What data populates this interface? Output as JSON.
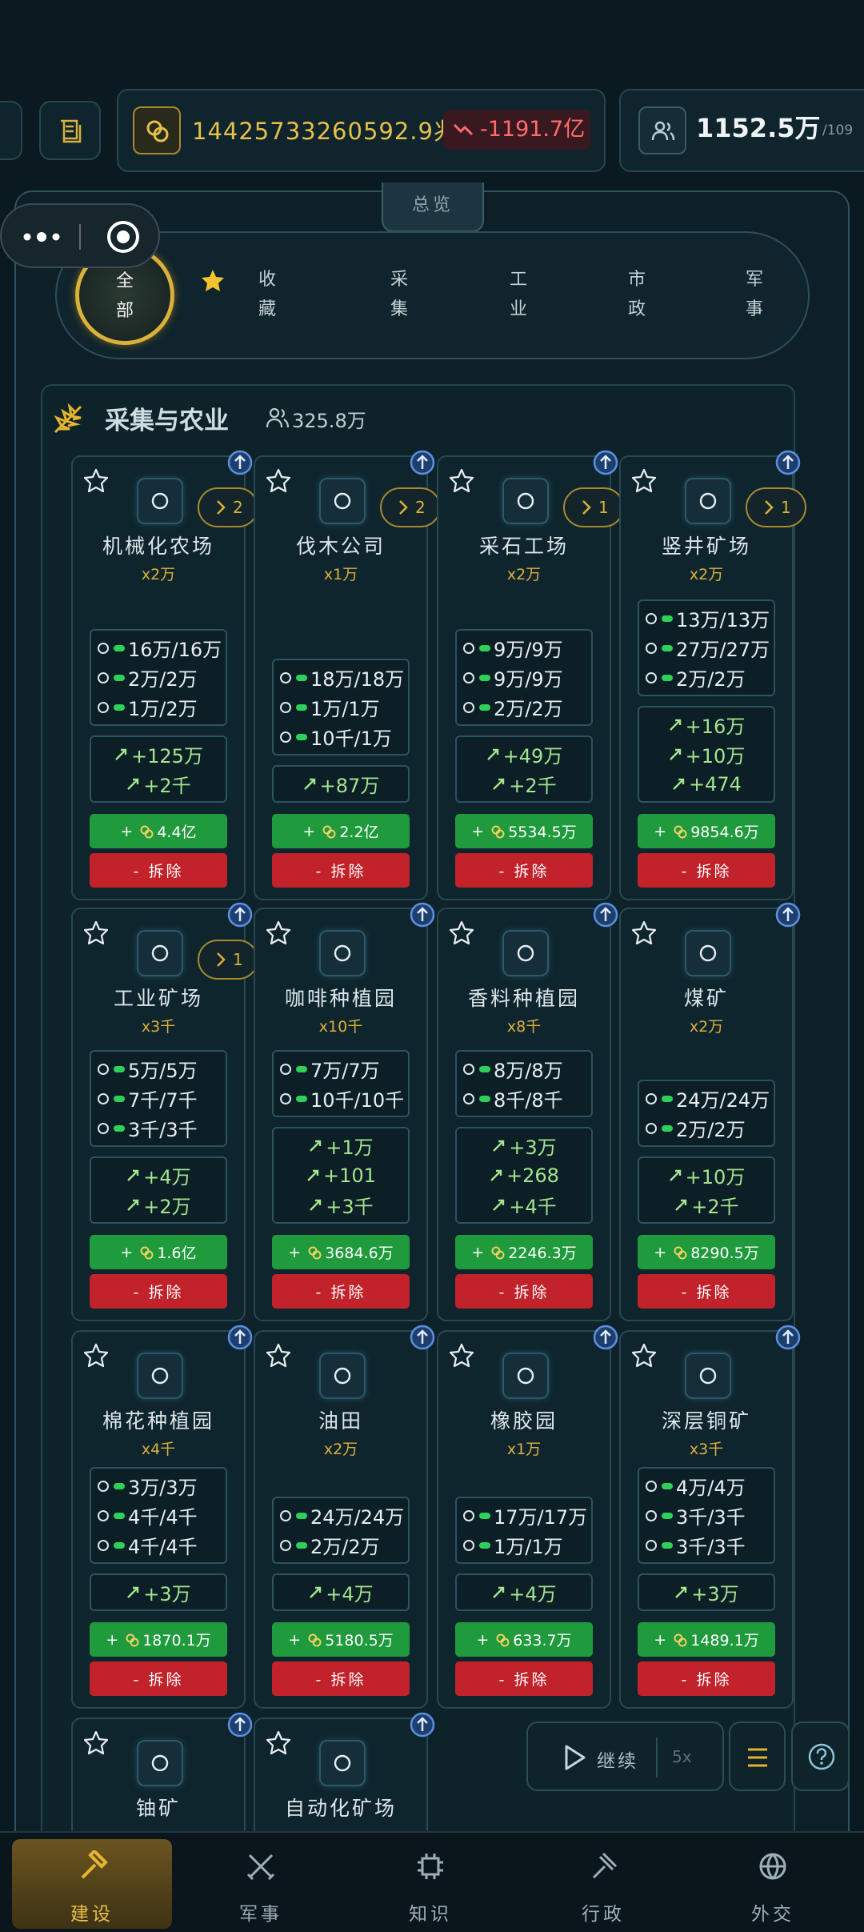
{
  "top_bar": {
    "money": "14425733260592.9兆",
    "delta": "-1191.7亿",
    "population": "1152.5万",
    "population_max": "/109"
  },
  "overview_tab": "总览",
  "filters": [
    "全部",
    "收藏",
    "采集",
    "工业",
    "市政",
    "军事"
  ],
  "section": {
    "title": "采集与农业",
    "population": "325.8万"
  },
  "build_prefix": "+",
  "demolish_label": "- 拆除",
  "buildings": [
    {
      "name": "机械化农场",
      "count": "x2万",
      "level": "2",
      "inputs": [
        "16万/16万",
        "2万/2万",
        "1万/2万"
      ],
      "outputs": [
        "+125万",
        "+2千"
      ],
      "cost": "4.4亿"
    },
    {
      "name": "伐木公司",
      "count": "x1万",
      "level": "2",
      "inputs": [
        "18万/18万",
        "1万/1万",
        "10千/1万"
      ],
      "outputs": [
        "+87万"
      ],
      "cost": "2.2亿"
    },
    {
      "name": "采石工场",
      "count": "x2万",
      "level": "1",
      "inputs": [
        "9万/9万",
        "9万/9万",
        "2万/2万"
      ],
      "outputs": [
        "+49万",
        "+2千"
      ],
      "cost": "5534.5万"
    },
    {
      "name": "竖井矿场",
      "count": "x2万",
      "level": "1",
      "inputs": [
        "13万/13万",
        "27万/27万",
        "2万/2万"
      ],
      "outputs": [
        "+16万",
        "+10万",
        "+474"
      ],
      "cost": "9854.6万"
    },
    {
      "name": "工业矿场",
      "count": "x3千",
      "level": "1",
      "inputs": [
        "5万/5万",
        "7千/7千",
        "3千/3千"
      ],
      "outputs": [
        "+4万",
        "+2万"
      ],
      "cost": "1.6亿"
    },
    {
      "name": "咖啡种植园",
      "count": "x10千",
      "inputs": [
        "7万/7万",
        "10千/10千"
      ],
      "outputs": [
        "+1万",
        "+101",
        "+3千"
      ],
      "cost": "3684.6万"
    },
    {
      "name": "香料种植园",
      "count": "x8千",
      "inputs": [
        "8万/8万",
        "8千/8千"
      ],
      "outputs": [
        "+3万",
        "+268",
        "+4千"
      ],
      "cost": "2246.3万"
    },
    {
      "name": "煤矿",
      "count": "x2万",
      "inputs": [
        "24万/24万",
        "2万/2万"
      ],
      "outputs": [
        "+10万",
        "+2千"
      ],
      "cost": "8290.5万"
    },
    {
      "name": "棉花种植园",
      "count": "x4千",
      "inputs": [
        "3万/3万",
        "4千/4千",
        "4千/4千"
      ],
      "outputs": [
        "+3万"
      ],
      "cost": "1870.1万"
    },
    {
      "name": "油田",
      "count": "x2万",
      "inputs": [
        "24万/24万",
        "2万/2万"
      ],
      "outputs": [
        "+4万"
      ],
      "cost": "5180.5万"
    },
    {
      "name": "橡胶园",
      "count": "x1万",
      "inputs": [
        "17万/17万",
        "1万/1万"
      ],
      "outputs": [
        "+4万"
      ],
      "cost": "633.7万"
    },
    {
      "name": "深层铜矿",
      "count": "x3千",
      "inputs": [
        "4万/4万",
        "3千/3千",
        "3千/3千"
      ],
      "outputs": [
        "+3万"
      ],
      "cost": "1489.1万"
    },
    {
      "name": "铀矿"
    },
    {
      "name": "自动化矿场"
    }
  ],
  "controls": {
    "play": "继续",
    "speed": "5x"
  },
  "nav": [
    "建设",
    "军事",
    "知识",
    "行政",
    "外交"
  ]
}
